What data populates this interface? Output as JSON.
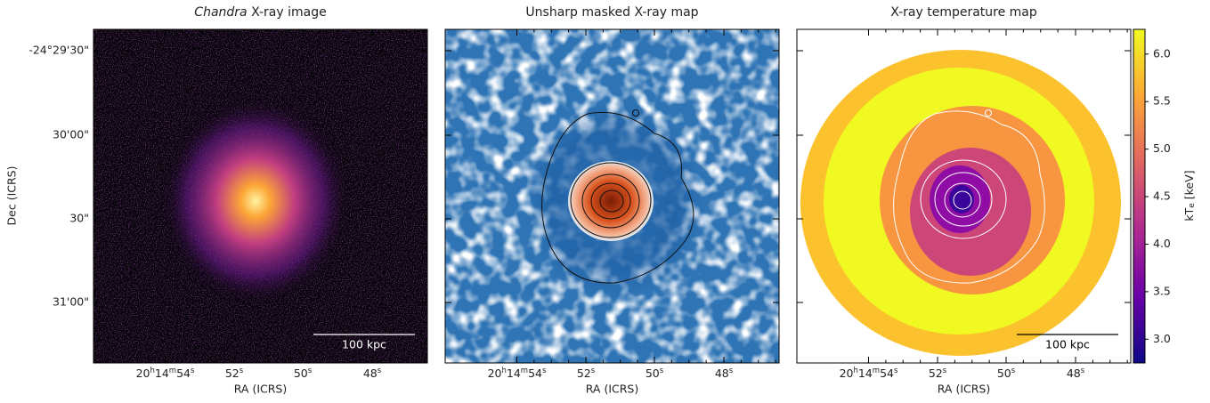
{
  "figure": {
    "panels": [
      {
        "title": [
          "Chandra",
          " X-ray image"
        ],
        "xlabel": "RA (ICRS)",
        "scalebar": "100 kpc"
      },
      {
        "title": [
          "Unsharp masked X-ray map"
        ],
        "xlabel": "RA (ICRS)"
      },
      {
        "title": [
          "X-ray temperature map"
        ],
        "xlabel": "RA (ICRS)",
        "scalebar": "100 kpc"
      }
    ],
    "ra_ticks": [
      [
        "20",
        "h",
        "14",
        "m",
        "54",
        "s"
      ],
      [
        "52",
        "s"
      ],
      [
        "50",
        "s"
      ],
      [
        "48",
        "s"
      ]
    ],
    "dec_ticks": [
      "-24°29'30\"",
      "30'00\"",
      "30\"",
      "31'00\""
    ],
    "ylabel": "Dec (ICRS)",
    "colorbar": {
      "label": [
        "kT",
        "e",
        " [keV]"
      ],
      "lim": [
        2.75,
        6.26
      ],
      "ticks": [
        {
          "value": 3,
          "label": "3.0"
        },
        {
          "value": 3.5,
          "label": "3.5"
        },
        {
          "value": 4,
          "label": "4.0"
        },
        {
          "value": 4.5,
          "label": "4.5"
        },
        {
          "value": 5,
          "label": "5.0"
        },
        {
          "value": 5.5,
          "label": "5.5"
        },
        {
          "value": 6,
          "label": "6.0"
        }
      ]
    }
  }
}
